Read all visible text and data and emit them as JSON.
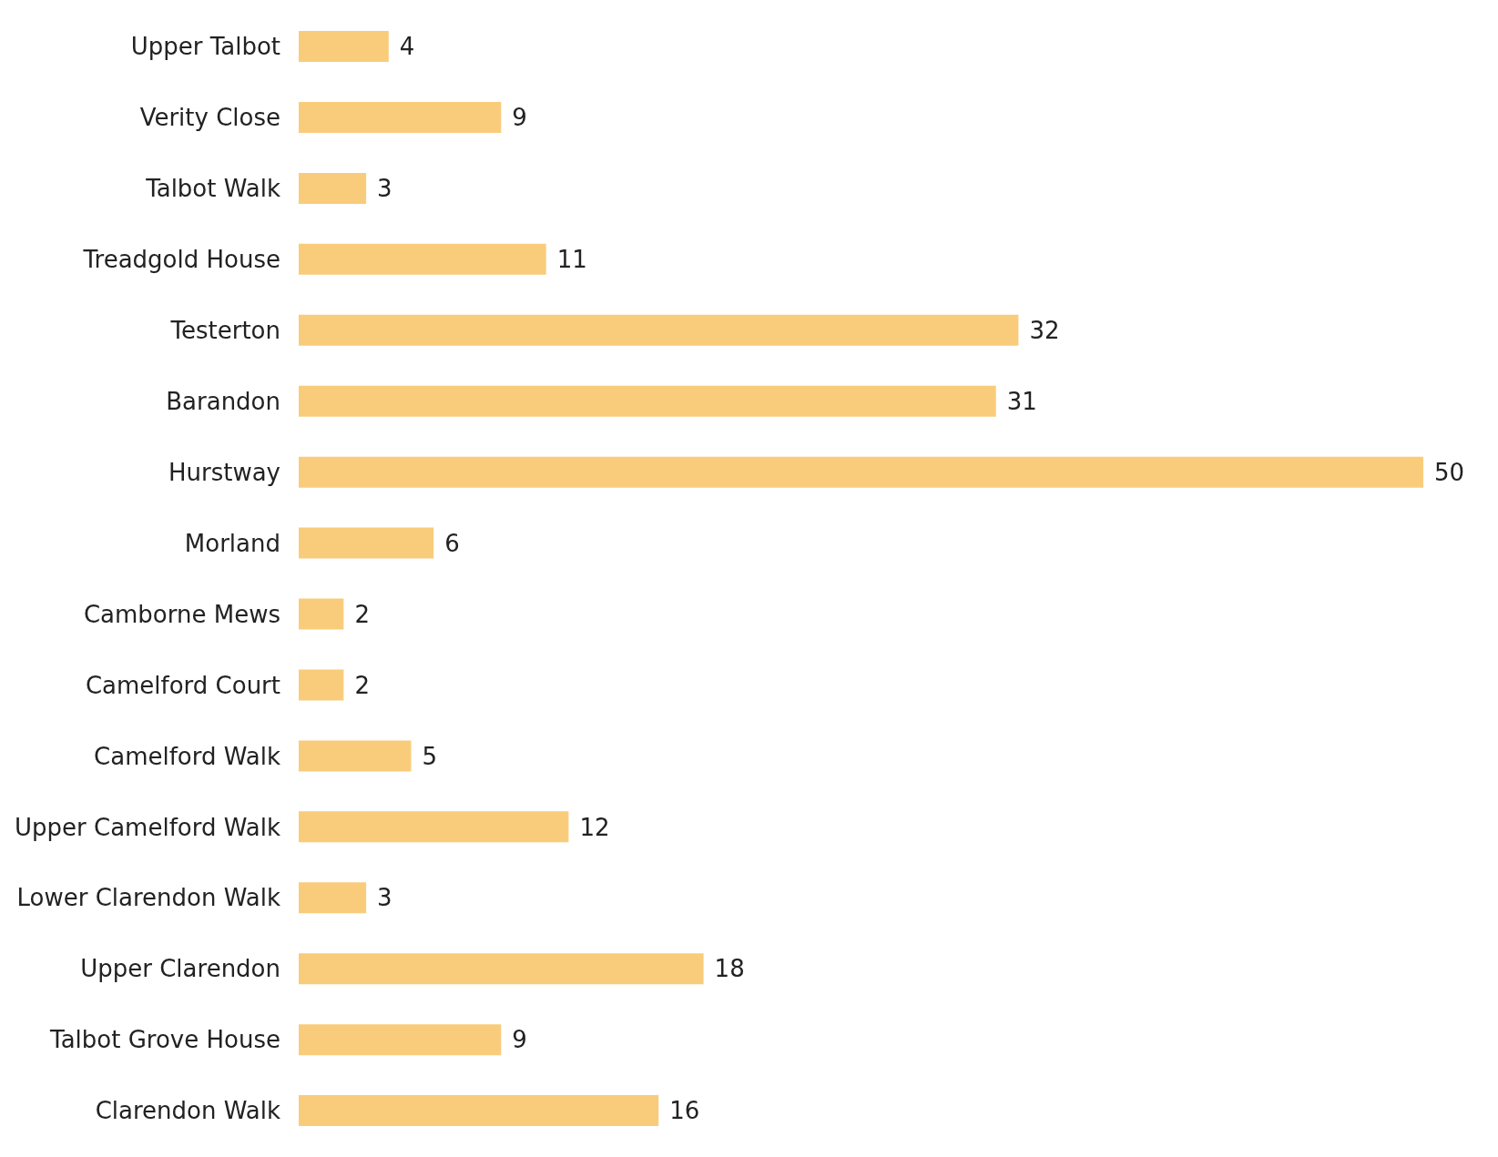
{
  "chart_data": {
    "type": "bar",
    "orientation": "horizontal",
    "data_labels": true,
    "grid": false,
    "categories": [
      "Upper Talbot",
      "Verity Close",
      "Talbot Walk",
      "Treadgold House",
      "Testerton",
      "Barandon",
      "Hurstway",
      "Morland",
      "Camborne Mews",
      "Camelford Court",
      "Camelford Walk",
      "Upper Camelford Walk",
      "Lower Clarendon Walk",
      "Upper Clarendon",
      "Talbot Grove House",
      "Clarendon Walk"
    ],
    "values": [
      4,
      9,
      3,
      11,
      32,
      31,
      50,
      6,
      2,
      2,
      5,
      12,
      3,
      18,
      9,
      16
    ],
    "color": "#f9cc7c"
  }
}
